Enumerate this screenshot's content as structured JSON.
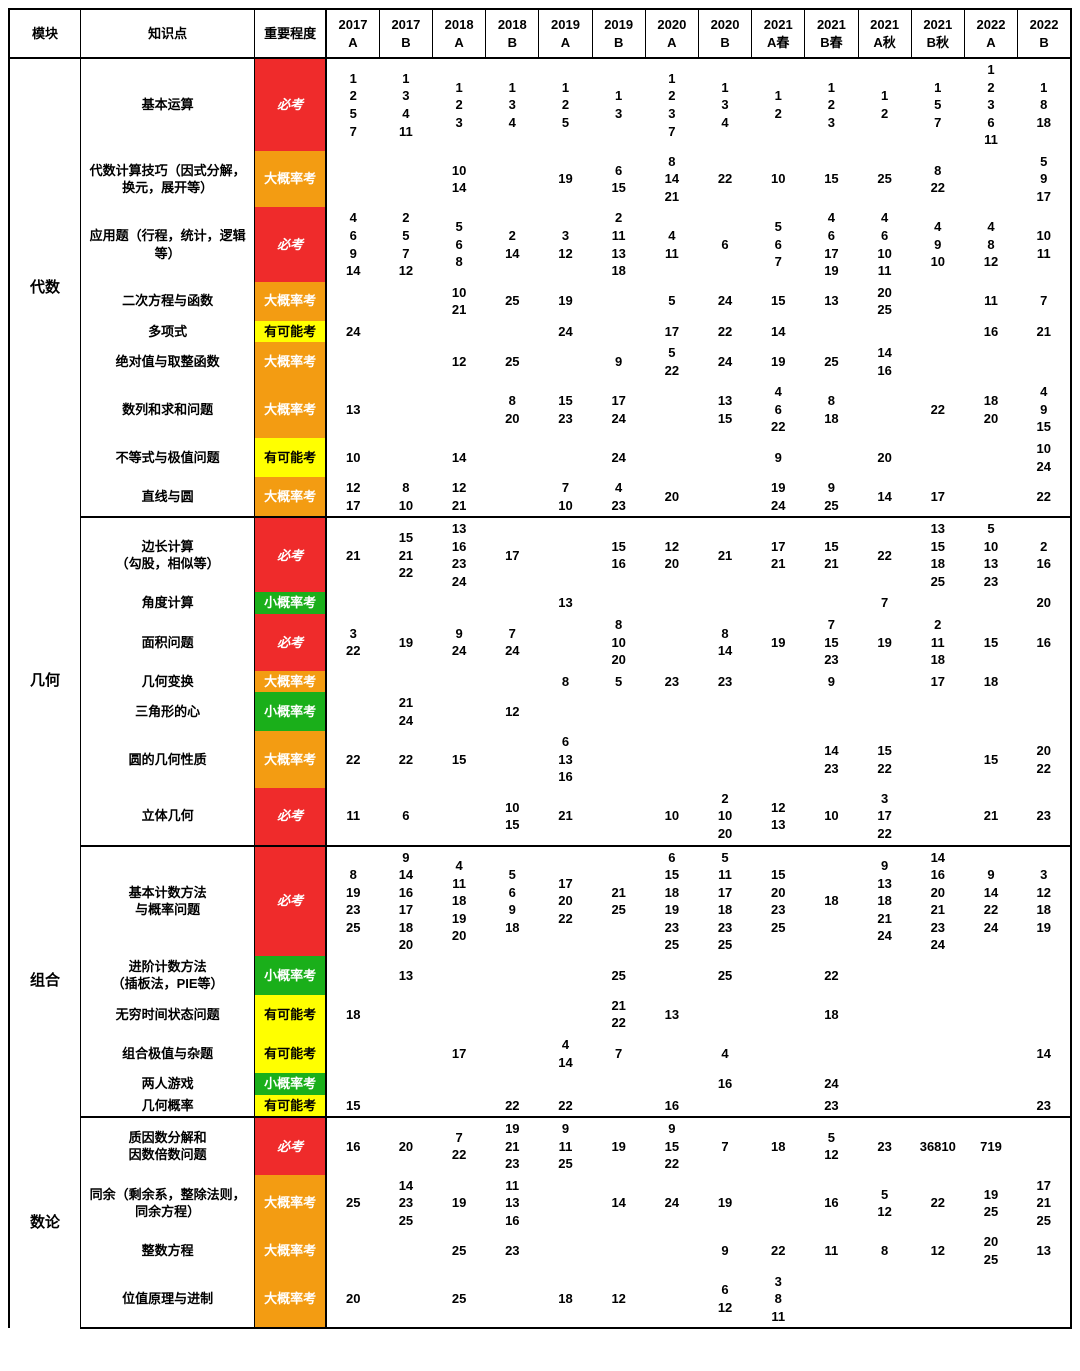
{
  "header": {
    "module": "模块",
    "topic": "知识点",
    "importance": "重要程度",
    "years": [
      "2017 A",
      "2017 B",
      "2018 A",
      "2018 B",
      "2019 A",
      "2019 B",
      "2020 A",
      "2020 B",
      "2021 A春",
      "2021 B春",
      "2021 A秋",
      "2021 B秋",
      "2022 A",
      "2022 B"
    ]
  },
  "importance_colors": {
    "必考": "imp-red",
    "大概率考": "imp-orange",
    "有可能考": "imp-yellow",
    "小概率考": "imp-green"
  },
  "sections": [
    {
      "module": "代数",
      "rows": [
        {
          "topic": "基本运算",
          "importance": "必考",
          "cells": [
            "1\n2\n5\n7",
            "1\n3\n4\n11",
            "1\n2\n3",
            "1\n3\n4",
            "1\n2\n5",
            "1\n3",
            "1\n2\n3\n7",
            "1\n3\n4",
            "1\n2",
            "1\n2\n3",
            "1\n2",
            "1\n5\n7",
            "1\n2\n3\n6\n11",
            "1\n8\n18"
          ]
        },
        {
          "topic": "代数计算技巧（因式分解，换元，展开等）",
          "importance": "大概率考",
          "cells": [
            "",
            "",
            "10\n14",
            "",
            "19",
            "6\n15",
            "8\n14\n21",
            "22",
            "10",
            "15",
            "25",
            "8\n22",
            "",
            "5\n9\n17"
          ]
        },
        {
          "topic": "应用题（行程，统计，逻辑等）",
          "importance": "必考",
          "cells": [
            "4\n6\n9\n14",
            "2\n5\n7\n12",
            "5\n6\n8",
            "2\n14",
            "3\n12",
            "2\n11\n13\n18",
            "4\n11",
            "6",
            "5\n6\n7",
            "4\n6\n17\n19",
            "4\n6\n10\n11",
            "4\n9\n10",
            "4\n8\n12",
            "10\n11"
          ]
        },
        {
          "topic": "二次方程与函数",
          "importance": "大概率考",
          "cells": [
            "",
            "",
            "10\n21",
            "25",
            "19",
            "",
            "5",
            "24",
            "15",
            "13",
            "20\n25",
            "",
            "11",
            "7"
          ]
        },
        {
          "topic": "多项式",
          "importance": "有可能考",
          "cells": [
            "24",
            "",
            "",
            "",
            "24",
            "",
            "17",
            "22",
            "14",
            "",
            "",
            "",
            "16",
            "21"
          ]
        },
        {
          "topic": "绝对值与取整函数",
          "importance": "大概率考",
          "cells": [
            "",
            "",
            "12",
            "25",
            "",
            "9",
            "5\n22",
            "24",
            "19",
            "25",
            "14\n16",
            "",
            "",
            ""
          ]
        },
        {
          "topic": "数列和求和问题",
          "importance": "大概率考",
          "cells": [
            "13",
            "",
            "",
            "8\n20",
            "15\n23",
            "17\n24",
            "",
            "13\n15",
            "4\n6\n22",
            "8\n18",
            "",
            "22",
            "18\n20",
            "4\n9\n15"
          ]
        },
        {
          "topic": "不等式与极值问题",
          "importance": "有可能考",
          "cells": [
            "10",
            "",
            "14",
            "",
            "",
            "24",
            "",
            "",
            "9",
            "",
            "20",
            "",
            "",
            "10\n24"
          ]
        },
        {
          "topic": "直线与圆",
          "importance": "大概率考",
          "cells": [
            "12\n17",
            "8\n10",
            "12\n21",
            "",
            "7\n10",
            "4\n23",
            "20",
            "",
            "19\n24",
            "9\n25",
            "14",
            "17",
            "",
            "22"
          ]
        }
      ]
    },
    {
      "module": "几何",
      "rows": [
        {
          "topic": "边长计算\n（勾股，相似等）",
          "importance": "必考",
          "cells": [
            "21",
            "15\n21\n22",
            "13\n16\n23\n24",
            "17",
            "",
            "15\n16",
            "12\n20",
            "21",
            "17\n21",
            "15\n21",
            "22",
            "13\n15\n18\n25",
            "5\n10\n13\n23",
            "2\n16"
          ]
        },
        {
          "topic": "角度计算",
          "importance": "小概率考",
          "cells": [
            "",
            "",
            "",
            "",
            "13",
            "",
            "",
            "",
            "",
            "",
            "7",
            "",
            "",
            "20"
          ]
        },
        {
          "topic": "面积问题",
          "importance": "必考",
          "cells": [
            "3\n22",
            "19",
            "9\n24",
            "7\n24",
            "",
            "8\n10\n20",
            "",
            "8\n14",
            "19",
            "7\n15\n23",
            "19",
            "2\n11\n18",
            "15",
            "16"
          ]
        },
        {
          "topic": "几何变换",
          "importance": "大概率考",
          "cells": [
            "",
            "",
            "",
            "",
            "8",
            "5",
            "23",
            "23",
            "",
            "9",
            "",
            "17",
            "18",
            ""
          ]
        },
        {
          "topic": "三角形的心",
          "importance": "小概率考",
          "cells": [
            "",
            "21\n24",
            "",
            "12",
            "",
            "",
            "",
            "",
            "",
            "",
            "",
            "",
            "",
            ""
          ]
        },
        {
          "topic": "圆的几何性质",
          "importance": "大概率考",
          "cells": [
            "22",
            "22",
            "15",
            "",
            "6\n13\n16",
            "",
            "",
            "",
            "",
            "14\n23",
            "15\n22",
            "",
            "15",
            "20\n22"
          ]
        },
        {
          "topic": "立体几何",
          "importance": "必考",
          "cells": [
            "11",
            "6",
            "",
            "10\n15",
            "21",
            "",
            "10",
            "2\n10\n20",
            "12\n13",
            "10",
            "3\n17\n22",
            "",
            "21",
            "23"
          ]
        }
      ]
    },
    {
      "module": "组合",
      "rows": [
        {
          "topic": "基本计数方法\n与概率问题",
          "importance": "必考",
          "cells": [
            "8\n19\n23\n25",
            "9\n14\n16\n17\n18\n20",
            "4\n11\n18\n19\n20",
            "5\n6\n9\n18",
            "17\n20\n22",
            "21\n25",
            "6\n15\n18\n19\n23\n25",
            "5\n11\n17\n18\n23\n25",
            "15\n20\n23\n25",
            "18",
            "9\n13\n18\n21\n24",
            "14\n16\n20\n21\n23\n24",
            "9\n14\n22\n24",
            "3\n12\n18\n19"
          ]
        },
        {
          "topic": "进阶计数方法\n（插板法，PIE等）",
          "importance": "小概率考",
          "cells": [
            "",
            "13",
            "",
            "",
            "",
            "25",
            "",
            "25",
            "",
            "22",
            "",
            "",
            "",
            ""
          ]
        },
        {
          "topic": "无穷时间状态问题",
          "importance": "有可能考",
          "cells": [
            "18",
            "",
            "",
            "",
            "",
            "21\n22",
            "13",
            "",
            "",
            "18",
            "",
            "",
            "",
            ""
          ]
        },
        {
          "topic": "组合极值与杂题",
          "importance": "有可能考",
          "cells": [
            "",
            "",
            "17",
            "",
            "4\n14",
            "7",
            "",
            "4",
            "",
            "",
            "",
            "",
            "",
            "14"
          ]
        },
        {
          "topic": "两人游戏",
          "importance": "小概率考",
          "cells": [
            "",
            "",
            "",
            "",
            "",
            "",
            "",
            "16",
            "",
            "24",
            "",
            "",
            "",
            ""
          ]
        },
        {
          "topic": "几何概率",
          "importance": "有可能考",
          "cells": [
            "15",
            "",
            "",
            "22",
            "22",
            "",
            "16",
            "",
            "",
            "23",
            "",
            "",
            "",
            "23"
          ]
        }
      ]
    },
    {
      "module": "数论",
      "rows": [
        {
          "topic": "质因数分解和\n因数倍数问题",
          "importance": "必考",
          "cells": [
            "16",
            "20",
            "7\n22",
            "19\n21\n23",
            "9\n11\n25",
            "19",
            "9\n15\n22",
            "7",
            "18",
            "5\n12",
            "23",
            "36810",
            "719",
            ""
          ]
        },
        {
          "topic": "同余（剩余系，整除法则，同余方程）",
          "importance": "大概率考",
          "cells": [
            "25",
            "14\n23\n25",
            "19",
            "11\n13\n16",
            "",
            "14",
            "24",
            "19",
            "",
            "16",
            "5\n12",
            "22",
            "19\n25",
            "17\n21\n25"
          ]
        },
        {
          "topic": "整数方程",
          "importance": "大概率考",
          "cells": [
            "",
            "",
            "25",
            "23",
            "",
            "",
            "",
            "9",
            "22",
            "11",
            "8",
            "12",
            "20\n25",
            "13"
          ]
        },
        {
          "topic": "位值原理与进制",
          "importance": "大概率考",
          "cells": [
            "20",
            "",
            "25",
            "",
            "18",
            "12",
            "",
            "6\n12",
            "3\n8\n11",
            "",
            "",
            "",
            "",
            ""
          ]
        }
      ]
    }
  ]
}
